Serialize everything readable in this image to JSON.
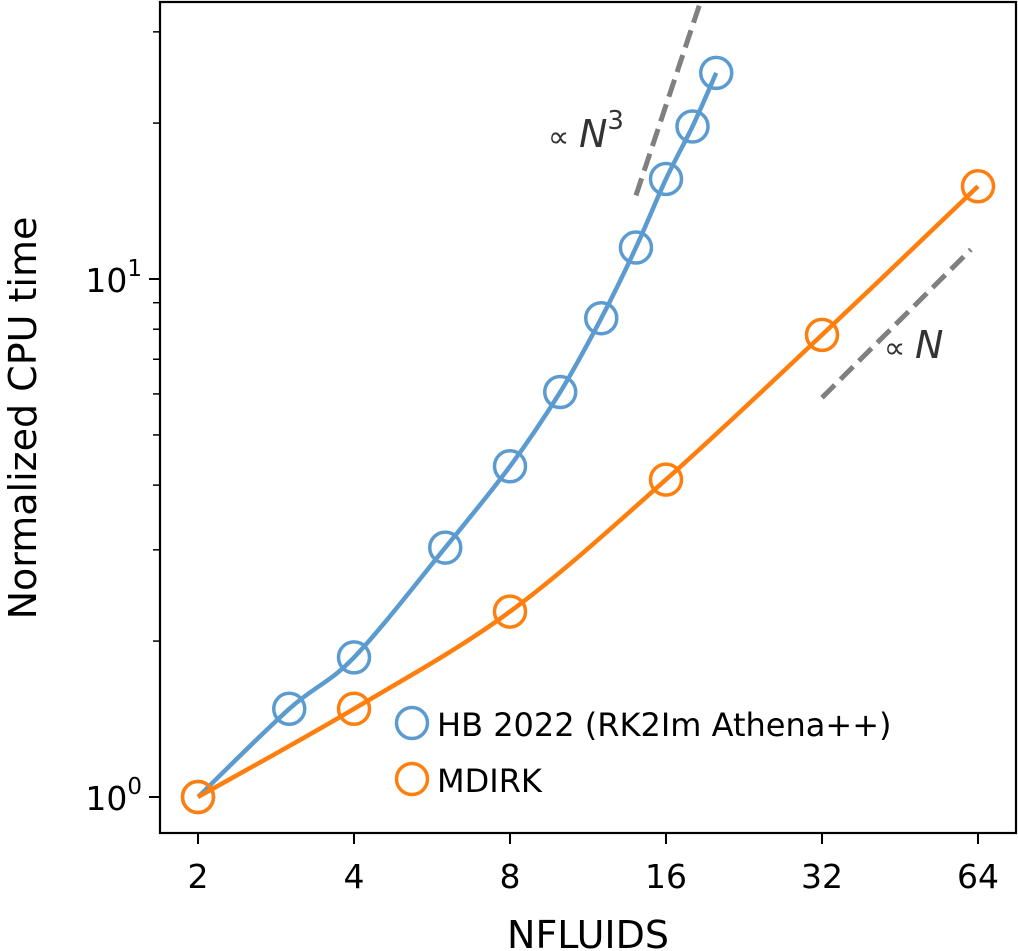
{
  "chart_data": {
    "type": "line",
    "xlabel": "NFLUIDS",
    "ylabel": "Normalized CPU time",
    "x_scale": "log2",
    "y_scale": "log10",
    "xlim": [
      1.85,
      76
    ],
    "ylim": [
      0.93,
      40
    ],
    "xticks": [
      2,
      4,
      8,
      16,
      32,
      64
    ],
    "xtick_labels": [
      "2",
      "4",
      "8",
      "16",
      "32",
      "64"
    ],
    "yticks_major": [
      {
        "value": 1,
        "base": "10",
        "exp": "0"
      },
      {
        "value": 10,
        "base": "10",
        "exp": "1"
      }
    ],
    "grid": false,
    "legend_position": "lower-right",
    "series": [
      {
        "name": "HB 2022 (RK2Im Athena++)",
        "color": "#5b9bd0",
        "marker": "open-circle",
        "x": [
          2,
          3,
          4,
          6,
          8,
          10,
          12,
          14,
          16,
          18,
          20
        ],
        "y": [
          1.0,
          1.48,
          1.86,
          3.03,
          4.35,
          6.05,
          8.4,
          11.5,
          15.6,
          19.7,
          25.0
        ]
      },
      {
        "name": "MDIRK",
        "color": "#ff7f0e",
        "marker": "open-circle",
        "x": [
          2,
          4,
          8,
          16,
          32,
          64
        ],
        "y": [
          1.0,
          1.48,
          2.28,
          4.1,
          7.8,
          15.1
        ]
      }
    ],
    "reference_lines": [
      {
        "label_prefix": "∝ ",
        "label_var": "N",
        "label_exp": "3",
        "color": "#808080",
        "x": [
          14,
          19.6
        ],
        "y": [
          14.5,
          39.8
        ]
      },
      {
        "label_prefix": "∝ ",
        "label_var": "N",
        "label_exp": "",
        "color": "#808080",
        "x": [
          32,
          62
        ],
        "y": [
          5.9,
          11.4
        ]
      }
    ]
  }
}
